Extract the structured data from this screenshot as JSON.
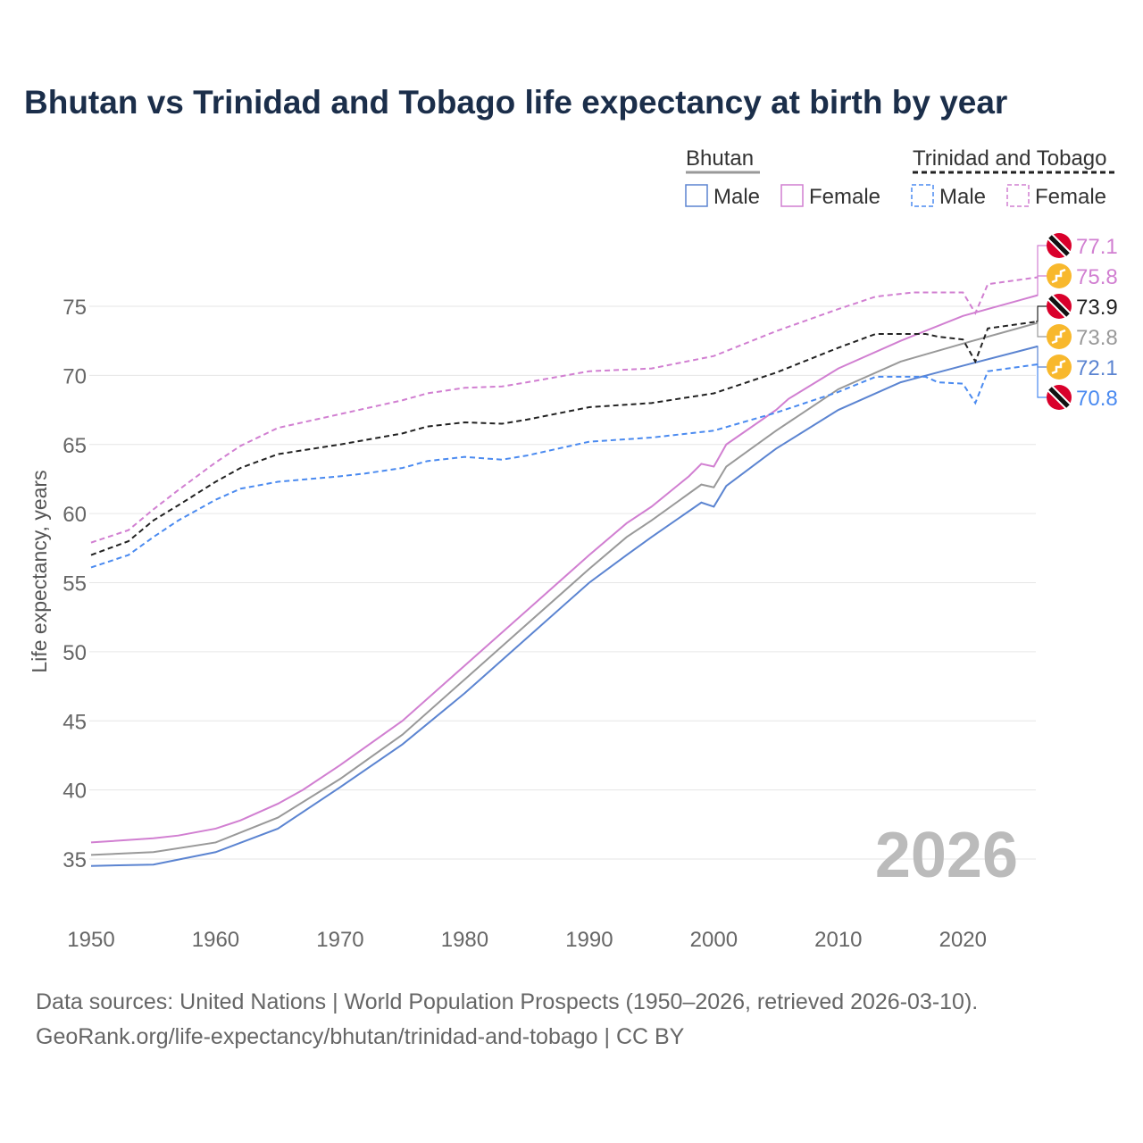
{
  "title": "Bhutan vs Trinidad and Tobago life expectancy at birth by year",
  "sources": [
    "Data sources: United Nations | World Population Prospects (1950–2026, retrieved 2026-03-10).",
    "GeoRank.org/life-expectancy/bhutan/trinidad-and-tobago | CC BY"
  ],
  "legend": {
    "groups": [
      {
        "name": "Bhutan",
        "items": [
          "Male",
          "Female"
        ]
      },
      {
        "name": "Trinidad and Tobago",
        "items": [
          "Male",
          "Female"
        ]
      }
    ]
  },
  "chart_data": {
    "type": "line",
    "title": "Bhutan vs Trinidad and Tobago life expectancy at birth by year",
    "xlabel": "",
    "ylabel": "Life expectancy, years",
    "xlim": [
      1950,
      2026
    ],
    "ylim": [
      33,
      78
    ],
    "xticks": [
      1950,
      1960,
      1970,
      1980,
      1990,
      2000,
      2010,
      2020
    ],
    "yticks": [
      35,
      40,
      45,
      50,
      55,
      60,
      65,
      70,
      75
    ],
    "year_label": "2026",
    "series": [
      {
        "name": "Trinidad and Tobago Female",
        "color": "#d17fd1",
        "dashed": true,
        "end_label": "77.1",
        "flag": "trinidad",
        "points": [
          [
            1950,
            57.9
          ],
          [
            1953,
            58.8
          ],
          [
            1955,
            60.3
          ],
          [
            1957,
            61.7
          ],
          [
            1960,
            63.7
          ],
          [
            1962,
            64.9
          ],
          [
            1965,
            66.2
          ],
          [
            1970,
            67.2
          ],
          [
            1975,
            68.2
          ],
          [
            1977,
            68.7
          ],
          [
            1980,
            69.1
          ],
          [
            1983,
            69.2
          ],
          [
            1985,
            69.5
          ],
          [
            1990,
            70.3
          ],
          [
            1995,
            70.5
          ],
          [
            2000,
            71.4
          ],
          [
            2005,
            73.2
          ],
          [
            2010,
            74.8
          ],
          [
            2013,
            75.7
          ],
          [
            2016,
            76.0
          ],
          [
            2020,
            76.0
          ],
          [
            2021,
            74.5
          ],
          [
            2022,
            76.6
          ],
          [
            2026,
            77.1
          ]
        ]
      },
      {
        "name": "Bhutan Female",
        "color": "#d17fd1",
        "dashed": false,
        "end_label": "75.8",
        "flag": "bhutan",
        "points": [
          [
            1950,
            36.2
          ],
          [
            1955,
            36.5
          ],
          [
            1957,
            36.7
          ],
          [
            1960,
            37.2
          ],
          [
            1962,
            37.8
          ],
          [
            1965,
            39.0
          ],
          [
            1967,
            40.0
          ],
          [
            1970,
            41.8
          ],
          [
            1975,
            45.0
          ],
          [
            1980,
            49.0
          ],
          [
            1985,
            53.0
          ],
          [
            1990,
            57.0
          ],
          [
            1993,
            59.3
          ],
          [
            1995,
            60.5
          ],
          [
            1998,
            62.7
          ],
          [
            1999,
            63.6
          ],
          [
            2000,
            63.4
          ],
          [
            2001,
            65.0
          ],
          [
            2005,
            67.5
          ],
          [
            2006,
            68.3
          ],
          [
            2010,
            70.5
          ],
          [
            2015,
            72.5
          ],
          [
            2020,
            74.3
          ],
          [
            2026,
            75.8
          ]
        ]
      },
      {
        "name": "Trinidad and Tobago",
        "color": "#222222",
        "dashed": true,
        "end_label": "73.9",
        "flag": "trinidad",
        "points": [
          [
            1950,
            57.0
          ],
          [
            1953,
            58.0
          ],
          [
            1955,
            59.5
          ],
          [
            1957,
            60.6
          ],
          [
            1960,
            62.3
          ],
          [
            1962,
            63.3
          ],
          [
            1965,
            64.3
          ],
          [
            1970,
            65.0
          ],
          [
            1975,
            65.8
          ],
          [
            1977,
            66.3
          ],
          [
            1980,
            66.6
          ],
          [
            1983,
            66.5
          ],
          [
            1985,
            66.8
          ],
          [
            1990,
            67.7
          ],
          [
            1995,
            68.0
          ],
          [
            2000,
            68.7
          ],
          [
            2005,
            70.2
          ],
          [
            2010,
            72.0
          ],
          [
            2013,
            73.0
          ],
          [
            2017,
            73.0
          ],
          [
            2018,
            72.8
          ],
          [
            2020,
            72.6
          ],
          [
            2021,
            71.0
          ],
          [
            2022,
            73.4
          ],
          [
            2026,
            73.9
          ]
        ]
      },
      {
        "name": "Bhutan",
        "color": "#999999",
        "dashed": false,
        "end_label": "73.8",
        "flag": "bhutan",
        "points": [
          [
            1950,
            35.3
          ],
          [
            1955,
            35.5
          ],
          [
            1960,
            36.2
          ],
          [
            1965,
            38.0
          ],
          [
            1970,
            40.8
          ],
          [
            1975,
            44.0
          ],
          [
            1980,
            48.0
          ],
          [
            1985,
            52.0
          ],
          [
            1990,
            56.0
          ],
          [
            1993,
            58.3
          ],
          [
            1995,
            59.5
          ],
          [
            1999,
            62.1
          ],
          [
            2000,
            61.9
          ],
          [
            2001,
            63.4
          ],
          [
            2005,
            66.0
          ],
          [
            2010,
            69.0
          ],
          [
            2015,
            71.0
          ],
          [
            2020,
            72.3
          ],
          [
            2026,
            73.8
          ]
        ]
      },
      {
        "name": "Bhutan Male",
        "color": "#5b84d1",
        "dashed": false,
        "end_label": "72.1",
        "flag": "bhutan",
        "points": [
          [
            1950,
            34.5
          ],
          [
            1955,
            34.6
          ],
          [
            1960,
            35.5
          ],
          [
            1965,
            37.2
          ],
          [
            1970,
            40.2
          ],
          [
            1975,
            43.3
          ],
          [
            1980,
            47.0
          ],
          [
            1985,
            51.0
          ],
          [
            1990,
            55.0
          ],
          [
            1993,
            57.0
          ],
          [
            1995,
            58.3
          ],
          [
            1999,
            60.8
          ],
          [
            2000,
            60.5
          ],
          [
            2001,
            62.0
          ],
          [
            2005,
            64.7
          ],
          [
            2010,
            67.5
          ],
          [
            2015,
            69.5
          ],
          [
            2020,
            70.7
          ],
          [
            2026,
            72.1
          ]
        ]
      },
      {
        "name": "Trinidad and Tobago Male",
        "color": "#4a8af0",
        "dashed": true,
        "end_label": "70.8",
        "flag": "trinidad",
        "points": [
          [
            1950,
            56.1
          ],
          [
            1953,
            57.0
          ],
          [
            1955,
            58.3
          ],
          [
            1957,
            59.5
          ],
          [
            1960,
            61.0
          ],
          [
            1962,
            61.8
          ],
          [
            1965,
            62.3
          ],
          [
            1970,
            62.7
          ],
          [
            1972,
            62.9
          ],
          [
            1975,
            63.3
          ],
          [
            1977,
            63.8
          ],
          [
            1980,
            64.1
          ],
          [
            1983,
            63.9
          ],
          [
            1985,
            64.2
          ],
          [
            1990,
            65.2
          ],
          [
            1995,
            65.5
          ],
          [
            2000,
            66.0
          ],
          [
            2005,
            67.3
          ],
          [
            2010,
            68.8
          ],
          [
            2013,
            69.9
          ],
          [
            2017,
            69.9
          ],
          [
            2018,
            69.5
          ],
          [
            2020,
            69.4
          ],
          [
            2021,
            68.0
          ],
          [
            2022,
            70.3
          ],
          [
            2026,
            70.8
          ]
        ]
      }
    ]
  }
}
